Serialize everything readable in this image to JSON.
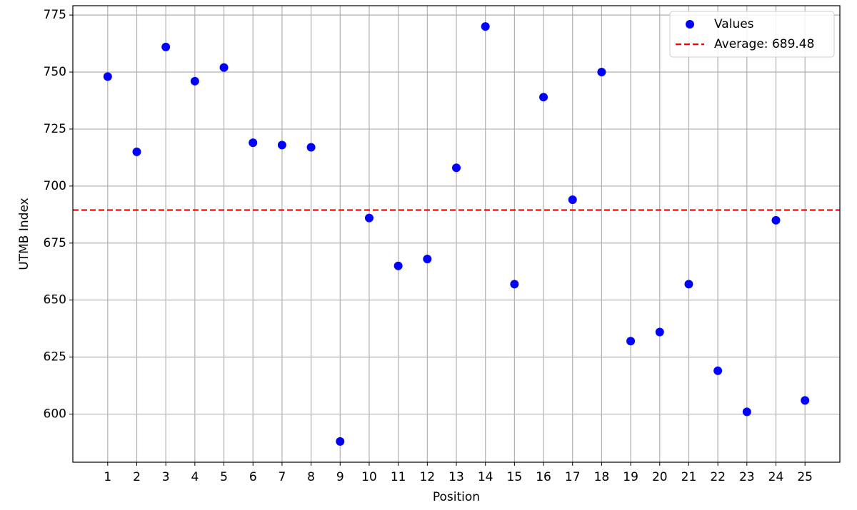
{
  "chart_data": {
    "type": "scatter",
    "x_label": "Position",
    "y_label": "UTMB Index",
    "x": [
      1,
      2,
      3,
      4,
      5,
      6,
      7,
      8,
      9,
      10,
      11,
      12,
      13,
      14,
      15,
      16,
      17,
      18,
      19,
      20,
      21,
      22,
      23,
      24,
      25
    ],
    "series": [
      {
        "name": "Values",
        "color": "#0000ff",
        "values": [
          748,
          715,
          761,
          746,
          752,
          719,
          718,
          717,
          588,
          686,
          665,
          668,
          708,
          770,
          657,
          739,
          694,
          750,
          632,
          636,
          657,
          619,
          601,
          685,
          606
        ]
      }
    ],
    "average_line": {
      "name": "Average: 689.48",
      "value": 689.48,
      "color": "#ff0000"
    },
    "xlim": [
      -0.2,
      26.2
    ],
    "ylim": [
      578.9,
      779.1
    ],
    "xticks": [
      1,
      2,
      3,
      4,
      5,
      6,
      7,
      8,
      9,
      10,
      11,
      12,
      13,
      14,
      15,
      16,
      17,
      18,
      19,
      20,
      21,
      22,
      23,
      24,
      25
    ],
    "yticks": [
      600,
      625,
      650,
      675,
      700,
      725,
      750,
      775
    ],
    "grid": true,
    "legend": "upper right"
  }
}
